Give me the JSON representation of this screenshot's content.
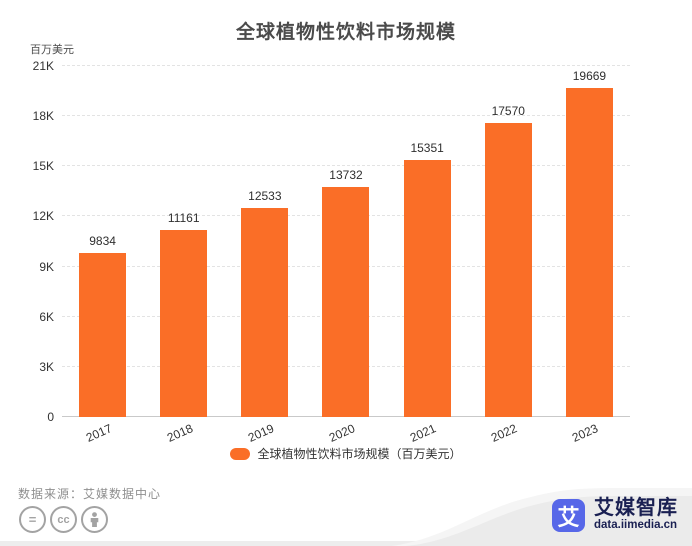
{
  "title": "全球植物性饮料市场规模",
  "y_axis_unit": "百万美元",
  "chart_data": {
    "type": "bar",
    "title": "全球植物性饮料市场规模",
    "categories": [
      "2017",
      "2018",
      "2019",
      "2020",
      "2021",
      "2022",
      "2023"
    ],
    "values": [
      9834,
      11161,
      12533,
      13732,
      15351,
      17570,
      19669
    ],
    "xlabel": "",
    "ylabel": "百万美元",
    "ylim": [
      0,
      21000
    ],
    "yticks": [
      0,
      3000,
      6000,
      9000,
      12000,
      15000,
      18000,
      21000
    ],
    "ytick_labels": [
      "0",
      "3K",
      "6K",
      "9K",
      "12K",
      "15K",
      "18K",
      "21K"
    ],
    "grid": "horizontal-dashed",
    "bar_color": "#FA6E27",
    "legend_position": "bottom",
    "legend": [
      "全球植物性饮料市场规模（百万美元）"
    ],
    "data_labels": [
      "9834",
      "11161",
      "12533",
      "13732",
      "15351",
      "17570",
      "19669"
    ]
  },
  "legend": {
    "label": "全球植物性饮料市场规模（百万美元）",
    "swatch_color": "#FA6E27"
  },
  "footer": {
    "source": "数据来源：艾媒数据中心",
    "license_icons": [
      "equals-icon",
      "cc-icon",
      "person-icon"
    ]
  },
  "branding": {
    "logo_glyph": "艾",
    "name": "艾媒智库",
    "url": "data.iimedia.cn",
    "logo_color": "#5767E8",
    "text_color": "#1a2052"
  },
  "colors": {
    "bar": "#FA6E27",
    "title_text": "#4b4b4b",
    "axis_text": "#333333",
    "gridline": "#e3e3e3",
    "source_text": "#8f8f8f",
    "swoosh_main": "#ebebeb",
    "swoosh_light": "#f5f5f5"
  }
}
